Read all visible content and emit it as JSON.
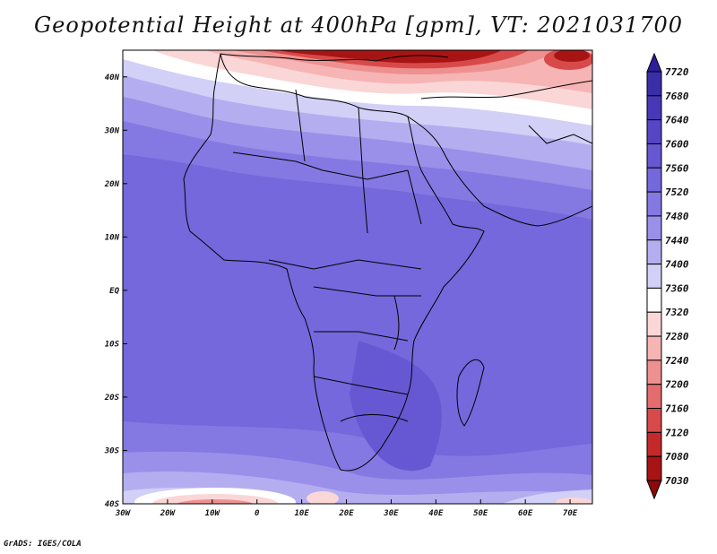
{
  "title": "Geopotential Height at 400hPa [gpm], VT: 2021031700",
  "credit": "GrADS: IGES/COLA",
  "map": {
    "lon_range": [
      -30,
      75
    ],
    "lat_range": [
      -40,
      45
    ],
    "lon_ticks": [
      {
        "value": -30,
        "label": "30W"
      },
      {
        "value": -20,
        "label": "20W"
      },
      {
        "value": -10,
        "label": "10W"
      },
      {
        "value": 0,
        "label": "0"
      },
      {
        "value": 10,
        "label": "10E"
      },
      {
        "value": 20,
        "label": "20E"
      },
      {
        "value": 30,
        "label": "30E"
      },
      {
        "value": 40,
        "label": "40E"
      },
      {
        "value": 50,
        "label": "50E"
      },
      {
        "value": 60,
        "label": "60E"
      },
      {
        "value": 70,
        "label": "70E"
      }
    ],
    "lat_ticks": [
      {
        "value": 40,
        "label": "40N"
      },
      {
        "value": 30,
        "label": "30N"
      },
      {
        "value": 20,
        "label": "20N"
      },
      {
        "value": 10,
        "label": "10N"
      },
      {
        "value": 0,
        "label": "EQ"
      },
      {
        "value": -10,
        "label": "10S"
      },
      {
        "value": -20,
        "label": "20S"
      },
      {
        "value": -30,
        "label": "30S"
      },
      {
        "value": -40,
        "label": "40S"
      }
    ]
  },
  "colorbar": {
    "levels": [
      "7720",
      "7680",
      "7640",
      "7600",
      "7560",
      "7520",
      "7480",
      "7440",
      "7400",
      "7360",
      "7320",
      "7280",
      "7240",
      "7200",
      "7160",
      "7120",
      "7080",
      "7030"
    ],
    "colors": [
      "#2e1e9a",
      "#3a2ea8",
      "#4838b8",
      "#5646c6",
      "#6658d2",
      "#7468dc",
      "#8478e2",
      "#9a90ea",
      "#b4aef0",
      "#d2d0f6",
      "#ffffff",
      "#fbd6d6",
      "#f6b4b4",
      "#ee9090",
      "#e46c6c",
      "#d84a4a",
      "#c42a2a",
      "#a81414",
      "#8c0a0a"
    ]
  }
}
